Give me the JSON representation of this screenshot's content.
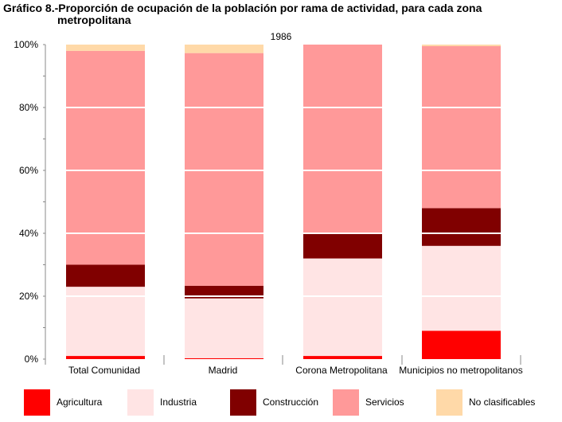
{
  "chart_data": {
    "type": "bar",
    "stacked": true,
    "title": "Gráfico 8.-Proporción de ocupación de la población por rama de actividad, para cada zona metropolitana",
    "title_line1": "Gráfico 8.-Proporción de ocupación de la población por rama de actividad, para cada zona",
    "title_line2": "metropolitana",
    "subtitle": "1986",
    "categories": [
      "Total Comunidad",
      "Madrid",
      "Corona Metropolitana",
      "Municipios no metropolitanos"
    ],
    "y_ticks": [
      "0%",
      "20%",
      "40%",
      "60%",
      "80%",
      "100%"
    ],
    "ylim": [
      0,
      100
    ],
    "grid": "white lines at 20% intervals over bars",
    "legend_position": "bottom",
    "series": [
      {
        "name": "Agricultura",
        "color": "#ff0000",
        "values": [
          1,
          0.3,
          1,
          9
        ]
      },
      {
        "name": "Industria",
        "color": "#ffe4e4",
        "values": [
          22,
          19,
          31,
          27
        ]
      },
      {
        "name": "Construcción",
        "color": "#800000",
        "values": [
          7,
          4,
          8,
          12
        ]
      },
      {
        "name": "Servicios",
        "color": "#ff9999",
        "values": [
          68,
          74,
          60,
          51.5
        ]
      },
      {
        "name": "No clasificables",
        "color": "#ffd9a8",
        "values": [
          2,
          2.7,
          0,
          0.5
        ]
      }
    ]
  }
}
